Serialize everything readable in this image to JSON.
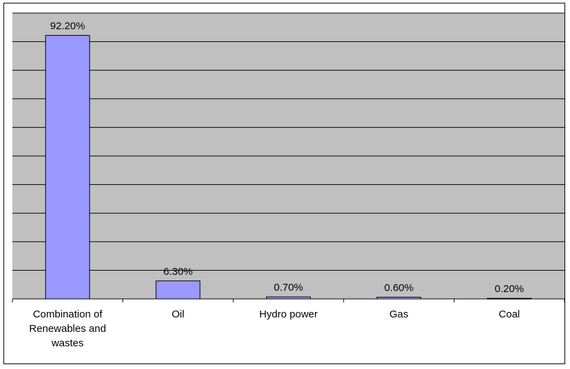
{
  "chart_data": {
    "type": "bar",
    "categories": [
      [
        "Combination of",
        "Renewables and",
        "wastes"
      ],
      [
        "Oil"
      ],
      [
        "Hydro power"
      ],
      [
        "Gas"
      ],
      [
        "Coal"
      ]
    ],
    "values": [
      92.2,
      6.3,
      0.7,
      0.6,
      0.2
    ],
    "value_labels": [
      "92.20%",
      "6.30%",
      "0.70%",
      "0.60%",
      "0.20%"
    ],
    "ylim": [
      0,
      100
    ],
    "grid": true,
    "legend": "none",
    "title": "",
    "xlabel": "",
    "ylabel": ""
  },
  "colors": {
    "plot_background": "#c0c0c0",
    "bar_fill": "#9999ff",
    "bar_stroke": "#000000",
    "gridline": "#000000"
  }
}
